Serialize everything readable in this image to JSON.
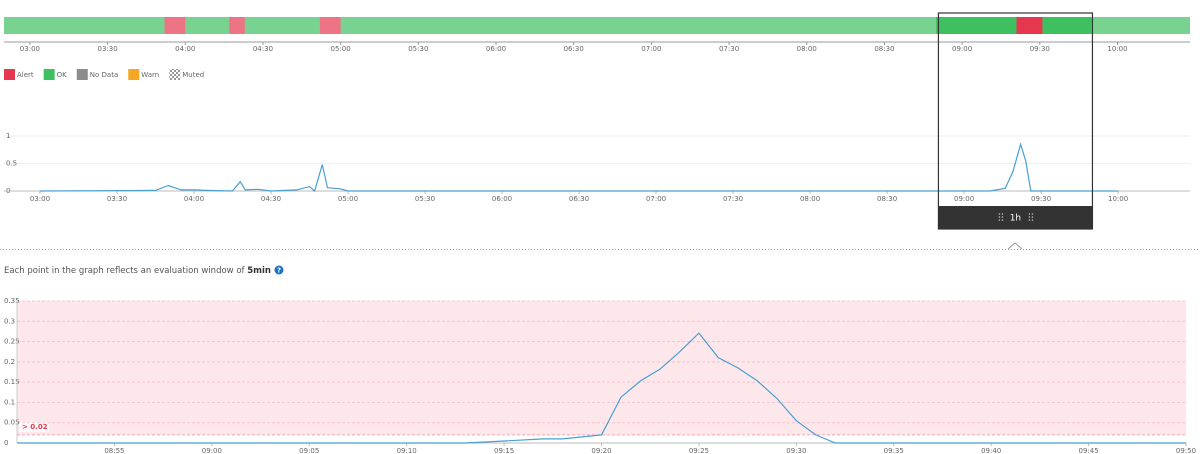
{
  "legend": [
    {
      "name": "Alert",
      "color": "#e5384f"
    },
    {
      "name": "OK",
      "color": "#3fc060"
    },
    {
      "name": "No Data",
      "color": "#8c8c8c"
    },
    {
      "name": "Warn",
      "color": "#f5a623"
    },
    {
      "name": "Muted",
      "pattern": true
    }
  ],
  "status_bar": {
    "xlim": [
      "02:50",
      "10:28"
    ],
    "alert_periods": [
      [
        "03:52",
        "04:00"
      ],
      [
        "04:17",
        "04:23"
      ],
      [
        "04:52",
        "05:00"
      ],
      [
        "09:21",
        "09:31"
      ]
    ],
    "xticks": [
      "03:00",
      "03:30",
      "04:00",
      "04:30",
      "05:00",
      "05:30",
      "06:00",
      "06:30",
      "07:00",
      "07:30",
      "08:00",
      "08:30",
      "09:00",
      "09:30",
      "10:00"
    ]
  },
  "overview_chart": {
    "type": "line",
    "color": "#4a9fd4",
    "xlim": [
      "02:46",
      "10:28"
    ],
    "ylim": [
      0,
      1
    ],
    "yticks": [
      0,
      0.5,
      1
    ],
    "xticks": [
      "03:00",
      "03:30",
      "04:00",
      "04:30",
      "05:00",
      "05:30",
      "06:00",
      "06:30",
      "07:00",
      "07:30",
      "08:00",
      "08:30",
      "09:00",
      "09:30",
      "10:00"
    ],
    "x": [
      "03:00",
      "03:45",
      "03:50",
      "03:55",
      "04:00",
      "04:05",
      "04:15",
      "04:18",
      "04:20",
      "04:25",
      "04:30",
      "04:40",
      "04:45",
      "04:47",
      "04:50",
      "04:52",
      "04:57",
      "05:00",
      "09:10",
      "09:16",
      "09:19",
      "09:22",
      "09:24",
      "09:26",
      "10:00"
    ],
    "values": [
      0,
      0.01,
      0.1,
      0.02,
      0.02,
      0.01,
      0,
      0.17,
      0.02,
      0.03,
      0,
      0.02,
      0.08,
      0,
      0.48,
      0.06,
      0.04,
      0,
      0,
      0.05,
      0.35,
      0.85,
      0.55,
      0,
      0
    ]
  },
  "window": {
    "start": "08:50",
    "end": "09:50",
    "label": "1h"
  },
  "note": {
    "text": "Each point in the graph reflects an evaluation window of ",
    "window": "5min"
  },
  "detail_chart": {
    "type": "line",
    "color": "#4a9fd4",
    "xlim": [
      "08:50",
      "09:50"
    ],
    "ylim": [
      0,
      0.35
    ],
    "yticks": [
      0,
      0.05,
      0.1,
      0.15,
      0.2,
      0.25,
      0.3,
      0.35
    ],
    "xticks": [
      "08:55",
      "09:00",
      "09:05",
      "09:10",
      "09:15",
      "09:20",
      "09:25",
      "09:30",
      "09:35",
      "09:40",
      "09:45",
      "09:50"
    ],
    "threshold": {
      "value": 0.02,
      "label": "> 0.02"
    },
    "threshold_color": "#fde7ea",
    "x": [
      "08:50",
      "09:13",
      "09:15",
      "09:17",
      "09:18",
      "09:20",
      "09:21",
      "09:22",
      "09:23",
      "09:24",
      "09:25",
      "09:26",
      "09:27",
      "09:28",
      "09:29",
      "09:30",
      "09:31",
      "09:32",
      "09:50"
    ],
    "values": [
      0,
      0,
      0.005,
      0.01,
      0.01,
      0.02,
      0.113,
      0.153,
      0.182,
      0.224,
      0.271,
      0.21,
      0.185,
      0.153,
      0.11,
      0.055,
      0.02,
      0,
      0
    ]
  }
}
